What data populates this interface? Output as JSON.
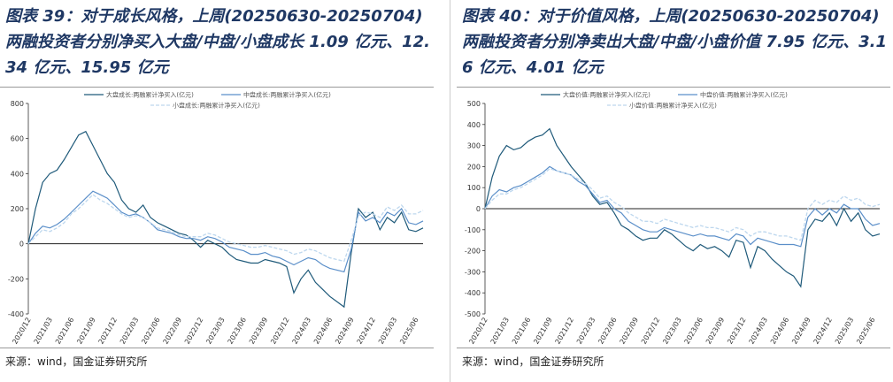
{
  "chart_data": [
    {
      "type": "line",
      "title": "图表 39：对于成长风格，上周(20250630-20250704)两融投资者分别净买入大盘/中盘/小盘成长 1.09 亿元、12.34 亿元、15.95 亿元",
      "categories": [
        "2020/12",
        null,
        null,
        "2021/03",
        null,
        null,
        "2021/06",
        null,
        null,
        "2021/09",
        null,
        null,
        "2021/12",
        null,
        null,
        "2022/03",
        null,
        null,
        "2022/06",
        null,
        null,
        "2022/09",
        null,
        null,
        "2022/12",
        null,
        null,
        "2023/03",
        null,
        null,
        "2023/06",
        null,
        null,
        "2023/09",
        null,
        null,
        "2023/12",
        null,
        null,
        "2024/03",
        null,
        null,
        "2024/06",
        null,
        null,
        "2024/09",
        null,
        null,
        "2024/12",
        null,
        null,
        "2025/03",
        null,
        null,
        "2025/06",
        null
      ],
      "series": [
        {
          "name": "大盘成长:两融累计净买入(亿元)",
          "color": "#1f5a7a",
          "line_style": "solid",
          "values": [
            0,
            200,
            350,
            400,
            420,
            480,
            550,
            620,
            640,
            560,
            480,
            400,
            350,
            250,
            200,
            180,
            220,
            150,
            120,
            100,
            80,
            60,
            50,
            20,
            -20,
            20,
            0,
            -20,
            -60,
            -90,
            -100,
            -110,
            -110,
            -90,
            -100,
            -110,
            -130,
            -280,
            -200,
            -150,
            -220,
            -260,
            -300,
            -330,
            -360,
            -50,
            200,
            150,
            180,
            80,
            150,
            120,
            180,
            80,
            70,
            90
          ]
        },
        {
          "name": "中盘成长:两融累计净买入(亿元)",
          "color": "#5b8fc9",
          "line_style": "solid",
          "values": [
            0,
            60,
            100,
            90,
            110,
            140,
            180,
            220,
            260,
            300,
            280,
            260,
            220,
            180,
            160,
            170,
            150,
            120,
            80,
            70,
            60,
            40,
            30,
            30,
            20,
            40,
            30,
            10,
            -20,
            -30,
            -40,
            -60,
            -60,
            -50,
            -70,
            -80,
            -100,
            -120,
            -100,
            -80,
            -90,
            -120,
            -140,
            -150,
            -160,
            -30,
            180,
            130,
            150,
            120,
            180,
            160,
            200,
            120,
            110,
            130
          ]
        },
        {
          "name": "小盘成长:两融累计净买入(亿元)",
          "color": "#bdd7ee",
          "line_style": "dashed",
          "values": [
            0,
            40,
            80,
            70,
            90,
            120,
            170,
            200,
            240,
            280,
            250,
            230,
            200,
            170,
            150,
            160,
            150,
            120,
            90,
            80,
            70,
            50,
            40,
            40,
            40,
            60,
            50,
            30,
            10,
            0,
            -10,
            -20,
            -20,
            -10,
            -20,
            -30,
            -40,
            -60,
            -50,
            -30,
            -40,
            -60,
            -80,
            -90,
            -100,
            20,
            160,
            180,
            170,
            150,
            210,
            190,
            220,
            170,
            170,
            190
          ]
        }
      ],
      "ylim": [
        -400,
        800
      ],
      "yticks": [
        -400,
        -200,
        0,
        200,
        400,
        600,
        800
      ],
      "legend": "top"
    },
    {
      "type": "line",
      "title": "图表 40：对于价值风格，上周(20250630-20250704)两融投资者分别净卖出大盘/中盘/小盘价值 7.95 亿元、3.16 亿元、4.01 亿元",
      "categories": [
        "2020/12",
        null,
        null,
        "2021/03",
        null,
        null,
        "2021/06",
        null,
        null,
        "2021/09",
        null,
        null,
        "2021/12",
        null,
        null,
        "2022/03",
        null,
        null,
        "2022/06",
        null,
        null,
        "2022/09",
        null,
        null,
        "2022/12",
        null,
        null,
        "2023/03",
        null,
        null,
        "2023/06",
        null,
        null,
        "2023/09",
        null,
        null,
        "2023/12",
        null,
        null,
        "2024/03",
        null,
        null,
        "2024/06",
        null,
        null,
        "2024/09",
        null,
        null,
        "2024/12",
        null,
        null,
        "2025/03",
        null,
        null,
        "2025/06",
        null
      ],
      "series": [
        {
          "name": "大盘价值:两融累计净买入(亿元)",
          "color": "#1f5a7a",
          "line_style": "solid",
          "values": [
            0,
            150,
            250,
            300,
            280,
            290,
            320,
            340,
            350,
            380,
            300,
            250,
            200,
            160,
            120,
            60,
            20,
            30,
            -20,
            -80,
            -100,
            -130,
            -150,
            -140,
            -140,
            -100,
            -120,
            -150,
            -180,
            -200,
            -170,
            -190,
            -180,
            -200,
            -230,
            -150,
            -160,
            -280,
            -180,
            -200,
            -240,
            -270,
            -300,
            -320,
            -370,
            -100,
            -50,
            -60,
            -20,
            -80,
            0,
            -60,
            -20,
            -100,
            -130,
            -120
          ]
        },
        {
          "name": "中盘价值:两融累计净买入(亿元)",
          "color": "#5b8fc9",
          "line_style": "solid",
          "values": [
            0,
            60,
            90,
            80,
            100,
            110,
            130,
            150,
            170,
            200,
            180,
            170,
            160,
            130,
            110,
            70,
            30,
            40,
            0,
            -20,
            -60,
            -80,
            -100,
            -110,
            -110,
            -90,
            -100,
            -110,
            -120,
            -130,
            -120,
            -130,
            -130,
            -140,
            -150,
            -120,
            -130,
            -170,
            -140,
            -150,
            -160,
            -170,
            -170,
            -170,
            -180,
            -40,
            0,
            -30,
            0,
            -20,
            20,
            0,
            0,
            -50,
            -80,
            -70
          ]
        },
        {
          "name": "小盘价值:两融累计净买入(亿元)",
          "color": "#bdd7ee",
          "line_style": "dashed",
          "values": [
            0,
            40,
            70,
            70,
            90,
            100,
            120,
            140,
            160,
            190,
            180,
            170,
            160,
            140,
            120,
            90,
            50,
            60,
            30,
            10,
            -20,
            -40,
            -60,
            -60,
            -70,
            -50,
            -60,
            -70,
            -80,
            -90,
            -80,
            -90,
            -90,
            -100,
            -110,
            -90,
            -100,
            -130,
            -110,
            -110,
            -120,
            -130,
            -130,
            -140,
            -150,
            0,
            40,
            20,
            40,
            30,
            60,
            40,
            50,
            20,
            10,
            20
          ]
        }
      ],
      "ylim": [
        -500,
        500
      ],
      "yticks": [
        -500,
        -400,
        -300,
        -200,
        -100,
        0,
        100,
        200,
        300,
        400,
        500
      ],
      "legend": "top"
    }
  ],
  "sources": [
    "来源：wind，国金证券研究所",
    "来源：wind，国金证券研究所"
  ]
}
